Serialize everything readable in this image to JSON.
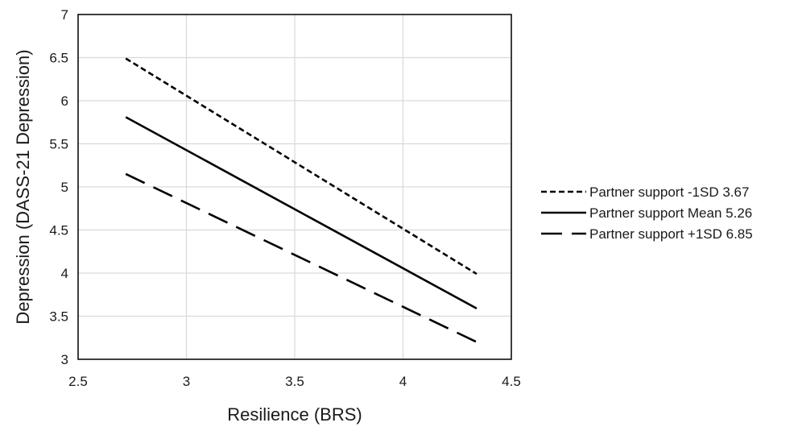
{
  "chart_data": {
    "type": "line",
    "title": "",
    "xlabel": "Resilience (BRS)",
    "ylabel": "Depression (DASS-21 Depression)",
    "xlim": [
      2.5,
      4.5
    ],
    "ylim": [
      3,
      7
    ],
    "xticks": [
      "2.5",
      "3",
      "3.5",
      "4",
      "4.5"
    ],
    "yticks": [
      "3",
      "3.5",
      "4",
      "4.5",
      "5",
      "5.5",
      "6",
      "6.5",
      "7"
    ],
    "grid": true,
    "legend_position": "right",
    "series": [
      {
        "name": "Partner support -1SD 3.67",
        "dash": "dotted",
        "color": "#000000",
        "x": [
          2.72,
          4.34
        ],
        "y": [
          6.49,
          3.99
        ]
      },
      {
        "name": "Partner support Mean 5.26",
        "dash": "solid",
        "color": "#000000",
        "x": [
          2.72,
          4.34
        ],
        "y": [
          5.81,
          3.59
        ]
      },
      {
        "name": "Partner support +1SD 6.85",
        "dash": "dashed",
        "color": "#000000",
        "x": [
          2.72,
          4.34
        ],
        "y": [
          5.15,
          3.2
        ]
      }
    ]
  }
}
